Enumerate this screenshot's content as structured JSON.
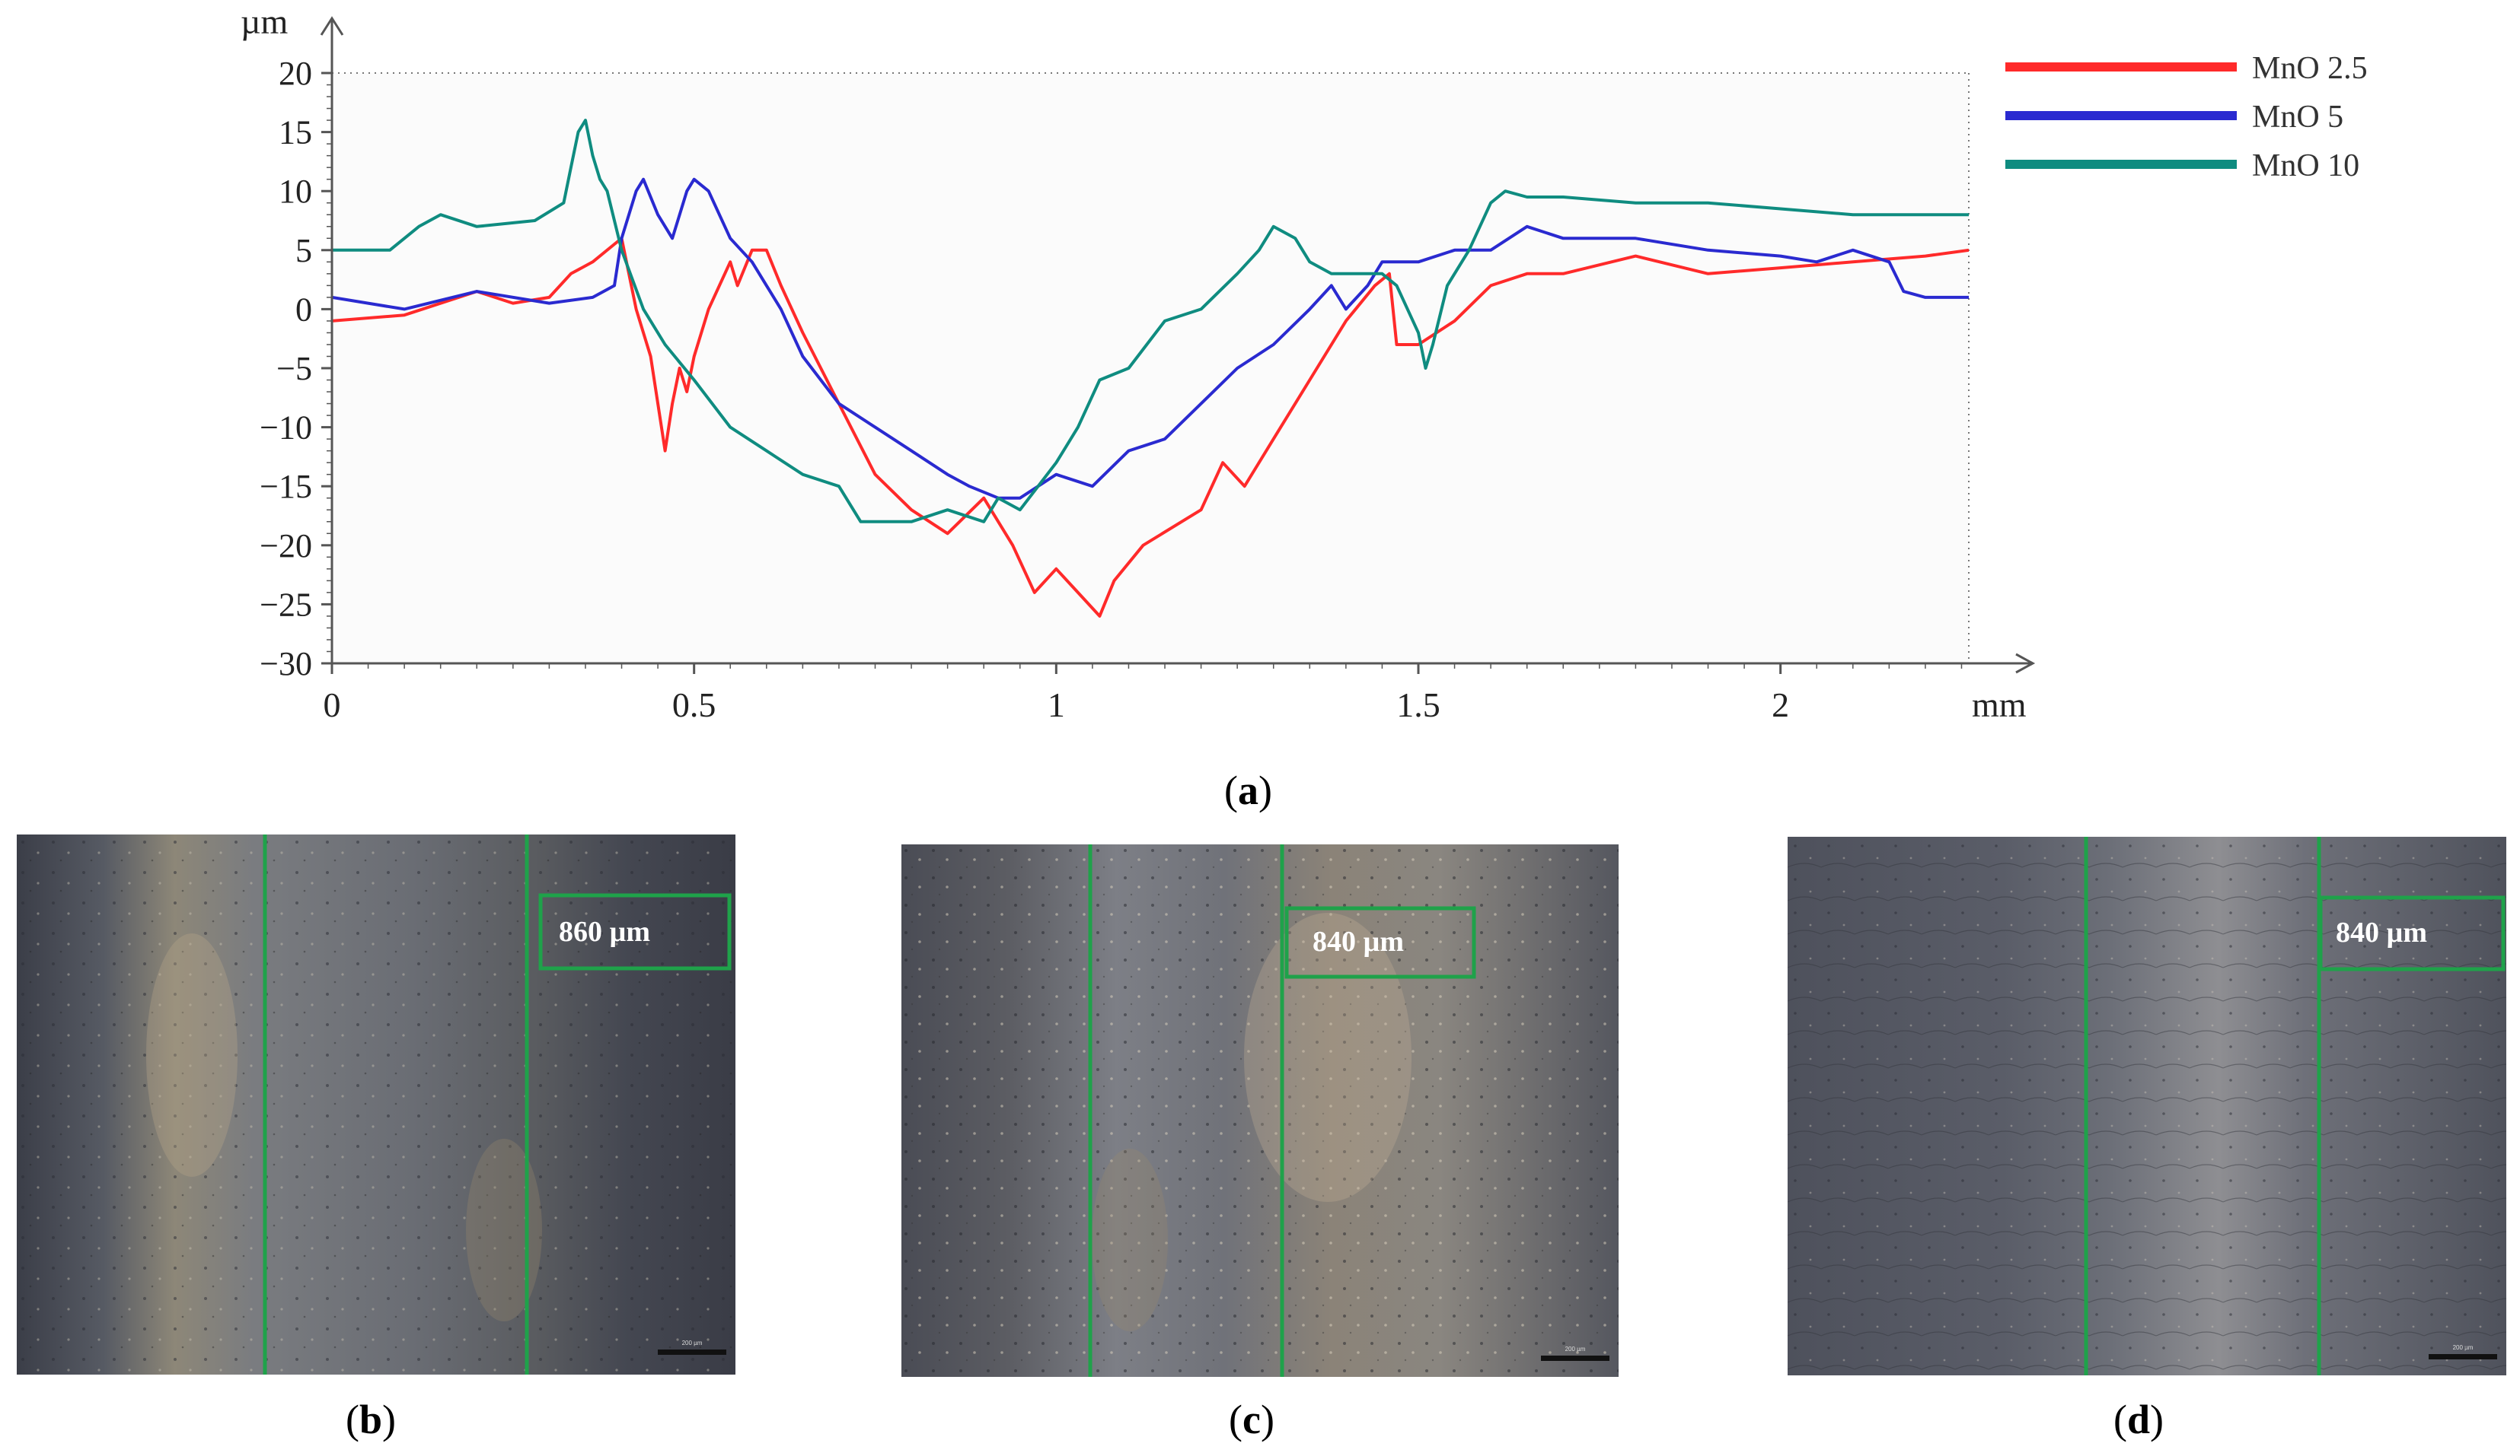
{
  "colors": {
    "mno_2_5": "#ff2a2a",
    "mno_5": "#2a2ad0",
    "mno_10": "#0f8c80",
    "guide": "#1fa24a",
    "axis": "#555555"
  },
  "panel_a": {
    "caption_letter": "a"
  },
  "chart_data": {
    "type": "line",
    "title": "",
    "xlabel": "mm",
    "ylabel": "µm",
    "xlim": [
      0,
      2.26
    ],
    "ylim": [
      -30,
      20
    ],
    "x_ticks": [
      0,
      0.5,
      1,
      1.5,
      2
    ],
    "x_tick_labels": [
      "0",
      "0.5",
      "1",
      "1.5",
      "2"
    ],
    "y_ticks": [
      20,
      15,
      10,
      5,
      0,
      -5,
      -10,
      -15,
      -20,
      -25,
      -30
    ],
    "y_tick_labels": [
      "20",
      "15",
      "10",
      "5",
      "0",
      "−5",
      "−10",
      "−15",
      "−20",
      "−25",
      "−30"
    ],
    "legend_position": "top-right",
    "series": [
      {
        "name": "MnO 2.5",
        "color_key": "mno_2_5",
        "x": [
          0,
          0.1,
          0.2,
          0.25,
          0.3,
          0.33,
          0.36,
          0.39,
          0.4,
          0.42,
          0.44,
          0.45,
          0.46,
          0.47,
          0.48,
          0.49,
          0.5,
          0.52,
          0.55,
          0.56,
          0.58,
          0.6,
          0.62,
          0.65,
          0.7,
          0.75,
          0.8,
          0.85,
          0.9,
          0.94,
          0.97,
          1.0,
          1.03,
          1.06,
          1.08,
          1.12,
          1.2,
          1.23,
          1.26,
          1.3,
          1.35,
          1.4,
          1.44,
          1.46,
          1.47,
          1.5,
          1.55,
          1.6,
          1.65,
          1.7,
          1.8,
          1.9,
          2.0,
          2.1,
          2.2,
          2.26
        ],
        "y": [
          -1,
          -0.5,
          1.5,
          0.5,
          1,
          3,
          4,
          5.5,
          6,
          0,
          -4,
          -8,
          -12,
          -8,
          -5,
          -7,
          -4,
          0,
          4,
          2,
          5,
          5,
          2,
          -2,
          -8,
          -14,
          -17,
          -19,
          -16,
          -20,
          -24,
          -22,
          -24,
          -26,
          -23,
          -20,
          -17,
          -13,
          -15,
          -11,
          -6,
          -1,
          2,
          3,
          -3,
          -3,
          -1,
          2,
          3,
          3,
          4.5,
          3,
          3.5,
          4,
          4.5,
          5
        ]
      },
      {
        "name": "MnO 5",
        "color_key": "mno_5",
        "x": [
          0,
          0.1,
          0.2,
          0.3,
          0.36,
          0.39,
          0.4,
          0.42,
          0.43,
          0.45,
          0.47,
          0.49,
          0.5,
          0.52,
          0.55,
          0.58,
          0.6,
          0.62,
          0.65,
          0.7,
          0.75,
          0.8,
          0.85,
          0.88,
          0.92,
          0.95,
          1.0,
          1.05,
          1.1,
          1.15,
          1.2,
          1.25,
          1.3,
          1.35,
          1.38,
          1.4,
          1.43,
          1.45,
          1.5,
          1.55,
          1.6,
          1.65,
          1.7,
          1.8,
          1.9,
          2.0,
          2.05,
          2.1,
          2.15,
          2.17,
          2.2,
          2.26
        ],
        "y": [
          1,
          0,
          1.5,
          0.5,
          1,
          2,
          6,
          10,
          11,
          8,
          6,
          10,
          11,
          10,
          6,
          4,
          2,
          0,
          -4,
          -8,
          -10,
          -12,
          -14,
          -15,
          -16,
          -16,
          -14,
          -15,
          -12,
          -11,
          -8,
          -5,
          -3,
          0,
          2,
          0,
          2,
          4,
          4,
          5,
          5,
          7,
          6,
          6,
          5,
          4.5,
          4,
          5,
          4,
          1.5,
          1,
          1
        ]
      },
      {
        "name": "MnO 10",
        "color_key": "mno_10",
        "x": [
          0,
          0.08,
          0.12,
          0.15,
          0.2,
          0.28,
          0.32,
          0.33,
          0.34,
          0.35,
          0.36,
          0.37,
          0.38,
          0.4,
          0.43,
          0.46,
          0.5,
          0.55,
          0.6,
          0.65,
          0.7,
          0.73,
          0.76,
          0.8,
          0.85,
          0.9,
          0.92,
          0.95,
          1.0,
          1.03,
          1.06,
          1.1,
          1.15,
          1.2,
          1.25,
          1.28,
          1.3,
          1.33,
          1.35,
          1.38,
          1.4,
          1.45,
          1.47,
          1.5,
          1.51,
          1.52,
          1.54,
          1.57,
          1.6,
          1.62,
          1.65,
          1.7,
          1.8,
          1.9,
          2.0,
          2.1,
          2.2,
          2.26
        ],
        "y": [
          5,
          5,
          7,
          8,
          7,
          7.5,
          9,
          12,
          15,
          16,
          13,
          11,
          10,
          5,
          0,
          -3,
          -6,
          -10,
          -12,
          -14,
          -15,
          -18,
          -18,
          -18,
          -17,
          -18,
          -16,
          -17,
          -13,
          -10,
          -6,
          -5,
          -1,
          0,
          3,
          5,
          7,
          6,
          4,
          3,
          3,
          3,
          2,
          -2,
          -5,
          -3,
          2,
          5,
          9,
          10,
          9.5,
          9.5,
          9,
          9,
          8.5,
          8,
          8,
          8
        ]
      }
    ]
  },
  "panels": [
    {
      "caption_letter": "b",
      "measurement_label": "860 µm",
      "scale_bar_label": "200 µm"
    },
    {
      "caption_letter": "c",
      "measurement_label": "840 µm",
      "scale_bar_label": "200 µm"
    },
    {
      "caption_letter": "d",
      "measurement_label": "840 µm",
      "scale_bar_label": "200 µm"
    }
  ]
}
